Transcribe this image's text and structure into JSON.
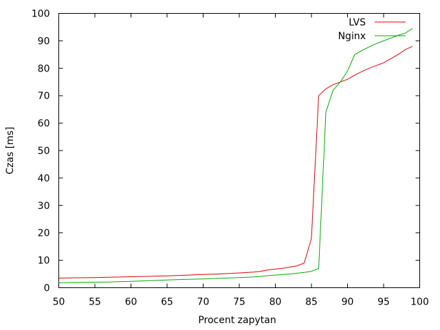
{
  "chart_data": {
    "type": "line",
    "title": "",
    "xlabel": "Procent zapytan",
    "ylabel": "Czas [ms]",
    "xlim": [
      50,
      100
    ],
    "ylim": [
      0,
      100
    ],
    "xticks": [
      50,
      55,
      60,
      65,
      70,
      75,
      80,
      85,
      90,
      95,
      100
    ],
    "yticks": [
      0,
      10,
      20,
      30,
      40,
      50,
      60,
      70,
      80,
      90,
      100
    ],
    "grid": false,
    "legend_position": "top-right",
    "series": [
      {
        "name": "LVS",
        "color": "#dd0000",
        "x": [
          50,
          52,
          55,
          57,
          60,
          62,
          65,
          67,
          70,
          72,
          75,
          77,
          78,
          79,
          80,
          81,
          82,
          83,
          84,
          85,
          86,
          87,
          88,
          89,
          90,
          91,
          92,
          93,
          94,
          95,
          96,
          97,
          98,
          99
        ],
        "y": [
          3.5,
          3.6,
          3.7,
          3.8,
          4.0,
          4.1,
          4.3,
          4.5,
          4.8,
          5.0,
          5.4,
          5.7,
          6.0,
          6.5,
          6.8,
          7.1,
          7.5,
          8.0,
          9.0,
          18.0,
          70.0,
          72.5,
          74.0,
          75.0,
          76.0,
          77.5,
          78.8,
          80.0,
          81.0,
          82.0,
          83.5,
          85.0,
          86.8,
          88.0
        ]
      },
      {
        "name": "Nginx",
        "color": "#00aa00",
        "x": [
          50,
          52,
          55,
          57,
          60,
          62,
          65,
          67,
          70,
          72,
          75,
          77,
          78,
          79,
          80,
          81,
          82,
          83,
          84,
          85,
          86,
          87,
          88,
          89,
          90,
          91,
          92,
          93,
          94,
          95,
          96,
          97,
          98,
          99
        ],
        "y": [
          1.8,
          1.9,
          2.0,
          2.1,
          2.3,
          2.5,
          2.8,
          3.0,
          3.2,
          3.4,
          3.7,
          3.9,
          4.1,
          4.4,
          4.6,
          4.8,
          5.0,
          5.3,
          5.6,
          6.0,
          7.0,
          64.0,
          72.0,
          75.0,
          79.0,
          85.0,
          86.5,
          87.8,
          89.0,
          90.0,
          91.0,
          92.0,
          92.8,
          94.5
        ]
      }
    ]
  }
}
